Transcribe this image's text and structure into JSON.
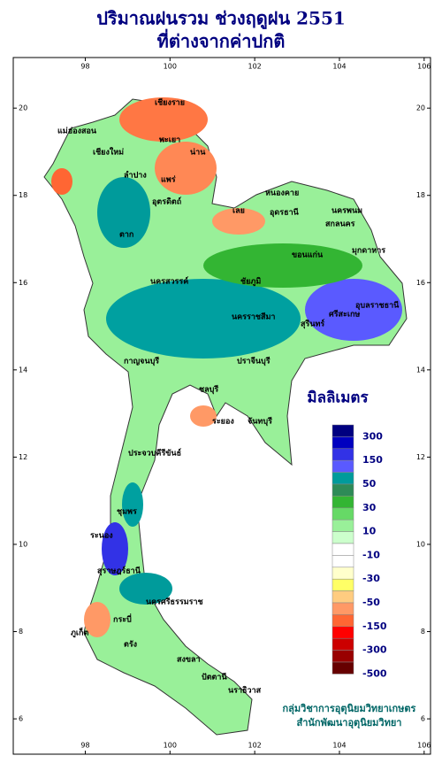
{
  "header": {
    "title_line1": "ปริมาณฝนรวม ช่วงฤดูฝน 2551",
    "title_line2": "ที่ต่างจากค่าปกติ"
  },
  "map": {
    "lon_range": [
      96.3,
      106.15
    ],
    "lat_range": [
      5.19,
      21.16
    ],
    "lon_ticks": [
      98,
      100,
      102,
      104,
      106
    ],
    "lat_ticks": [
      6,
      8,
      10,
      12,
      14,
      16,
      18,
      20
    ],
    "places": [
      "เชียงราย",
      "แม่ฮ่องสอน",
      "เชียงใหม่",
      "น่าน",
      "พะเยา",
      "แพร่",
      "ลำปาง",
      "อุตรดิตถ์",
      "ตาก",
      "เลย",
      "หนองคาย",
      "อุดรธานี",
      "นครพนม",
      "สกลนคร",
      "มุกดาหาร",
      "ขอนแก่น",
      "ชัยภูมิ",
      "นครสวรรค์",
      "นครราชสีมา",
      "สุรินทร์",
      "ศรีสะเกษ",
      "อุบลราชธานี",
      "กาญจนบุรี",
      "ปราจีนบุรี",
      "ชลบุรี",
      "ระยอง",
      "จันทบุรี",
      "ประจวบคีรีขันธ์",
      "ชุมพร",
      "ระนอง",
      "สุราษฎร์ธานี",
      "นครศรีธรรมราช",
      "ภูเก็ต",
      "กระบี่",
      "ตรัง",
      "สงขลา",
      "ปัตตานี",
      "นราธิวาส"
    ]
  },
  "legend": {
    "title": "มิลลิเมตร",
    "colors": [
      "#000080",
      "#0000c0",
      "#3232e6",
      "#5a5aff",
      "#009b9b",
      "#2e8b57",
      "#33b533",
      "#66d966",
      "#99f099",
      "#ccffcc",
      "#ffffff",
      "#ffffff",
      "#ffffcc",
      "#ffff66",
      "#ffcc80",
      "#ff9966",
      "#ff6633",
      "#ff0000",
      "#cc0000",
      "#990000",
      "#660000"
    ],
    "labels": [
      "300",
      "150",
      "50",
      "30",
      "10",
      "-10",
      "-30",
      "-50",
      "-150",
      "-300",
      "-500"
    ]
  },
  "credits": {
    "line1": "กลุ่มวิชาการอุตุนิยมวิทยาเกษตร",
    "line2": "สำนักพัฒนาอุตุนิยมวิทยา"
  }
}
